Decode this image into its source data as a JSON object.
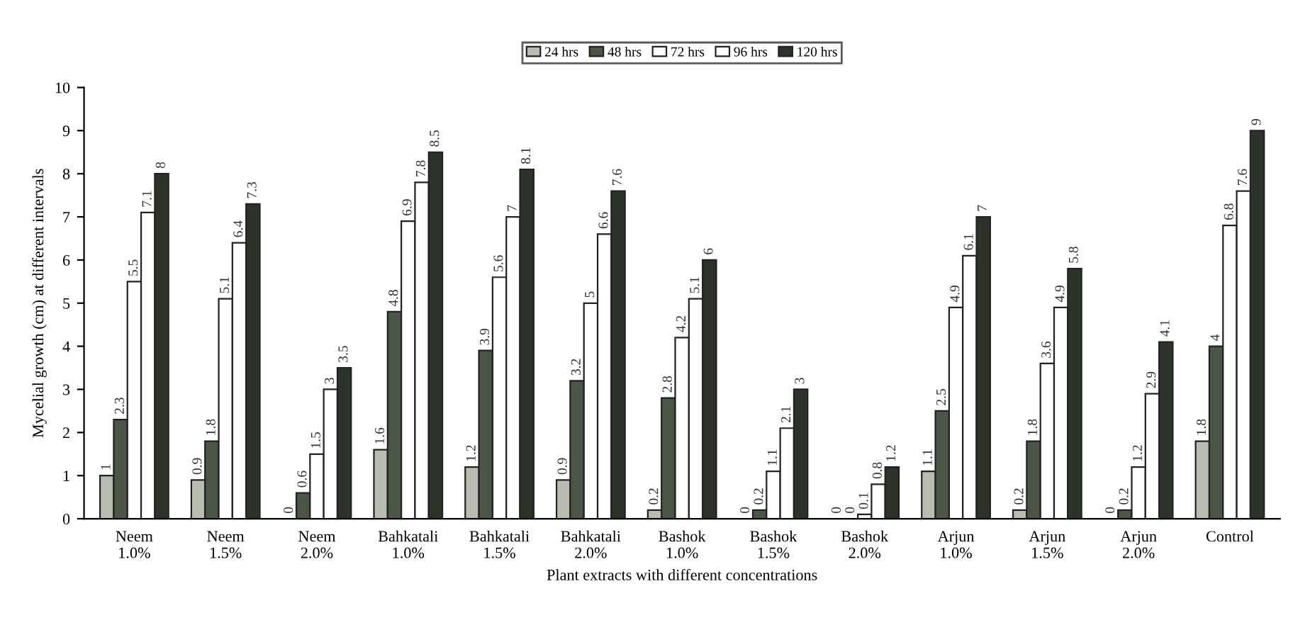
{
  "chart_data": {
    "type": "bar",
    "xlabel": "Plant extracts with different concentrations",
    "ylabel": "Mycelial growth (cm) at different intervals",
    "categories": [
      "Neem\n1.0%",
      "Neem\n1.5%",
      "Neem\n2.0%",
      "Bahkatali\n1.0%",
      "Bahkatali\n1.5%",
      "Bahkatali\n2.0%",
      "Bashok\n1.0%",
      "Bashok\n1.5%",
      "Bashok\n2.0%",
      "Arjun\n1.0%",
      "Arjun\n1.5%",
      "Arjun\n2.0%",
      "Control"
    ],
    "series": [
      {
        "name": "24 hrs",
        "color": "#b9bdb1",
        "values": [
          1,
          0.9,
          0,
          1.6,
          1.2,
          0.9,
          0.2,
          0,
          0,
          1.1,
          0.2,
          0,
          1.8
        ]
      },
      {
        "name": "48 hrs",
        "color": "#4b5646",
        "values": [
          2.3,
          1.8,
          0.6,
          4.8,
          3.9,
          3.2,
          2.8,
          0.2,
          0,
          2.5,
          1.8,
          0.2,
          4
        ]
      },
      {
        "name": "72 hrs",
        "color": "#ffffff",
        "values": [
          5.5,
          5.1,
          1.5,
          6.9,
          5.6,
          5,
          4.2,
          1.1,
          0.1,
          4.9,
          3.6,
          1.2,
          6.8
        ]
      },
      {
        "name": "96 hrs",
        "color": "#ffffff",
        "values": [
          7.1,
          6.4,
          3,
          7.8,
          7,
          6.6,
          5.1,
          2.1,
          0.8,
          6.1,
          4.9,
          2.9,
          7.6
        ]
      },
      {
        "name": "120 hrs",
        "color": "#2c3429",
        "values": [
          8,
          7.3,
          3.5,
          8.5,
          8.1,
          7.6,
          6,
          3,
          1.2,
          7,
          5.8,
          4.1,
          9
        ]
      }
    ],
    "ylim": [
      0,
      10
    ],
    "yticks": [
      0,
      1,
      2,
      3,
      4,
      5,
      6,
      7,
      8,
      9,
      10
    ],
    "data_labels": true,
    "legend": "top",
    "grid": false
  }
}
